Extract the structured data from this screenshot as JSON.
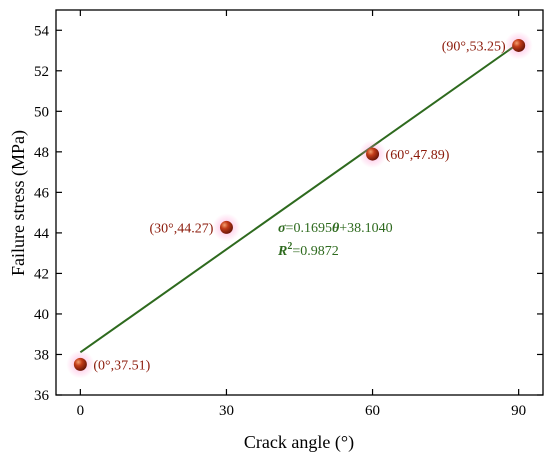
{
  "chart_data": {
    "type": "scatter",
    "xlabel": "Crack angle (°)",
    "ylabel": "Failure stress (MPa)",
    "xlim": [
      -5,
      95
    ],
    "ylim": [
      36,
      55
    ],
    "x_ticks": [
      0,
      30,
      60,
      90
    ],
    "y_ticks": [
      36,
      38,
      40,
      42,
      44,
      46,
      48,
      50,
      52,
      54
    ],
    "grid": false,
    "points": [
      {
        "x": 0,
        "y": 37.51,
        "label": "(0°,37.51)",
        "label_side": "right"
      },
      {
        "x": 30,
        "y": 44.27,
        "label": "(30°,44.27)",
        "label_side": "left"
      },
      {
        "x": 60,
        "y": 47.89,
        "label": "(60°,47.89)",
        "label_side": "right"
      },
      {
        "x": 90,
        "y": 53.25,
        "label": "(90°,53.25)",
        "label_side": "left"
      }
    ],
    "fit": {
      "slope": 0.1695,
      "intercept": 38.104,
      "x_range": [
        0,
        90
      ],
      "equation_text": {
        "sigma": "σ",
        "rest1": "=0.1695",
        "theta": "θ",
        "rest2": "+38.1040"
      },
      "r2_text": {
        "r": "R",
        "sup": "2",
        "rest": "=0.9872"
      }
    },
    "colors": {
      "marker": "#a32a10",
      "marker_highlight": "#f3a070",
      "marker_glow": "#ff7fc8",
      "fit_line": "#2e6a1e",
      "label": "#8b1a0a"
    }
  }
}
